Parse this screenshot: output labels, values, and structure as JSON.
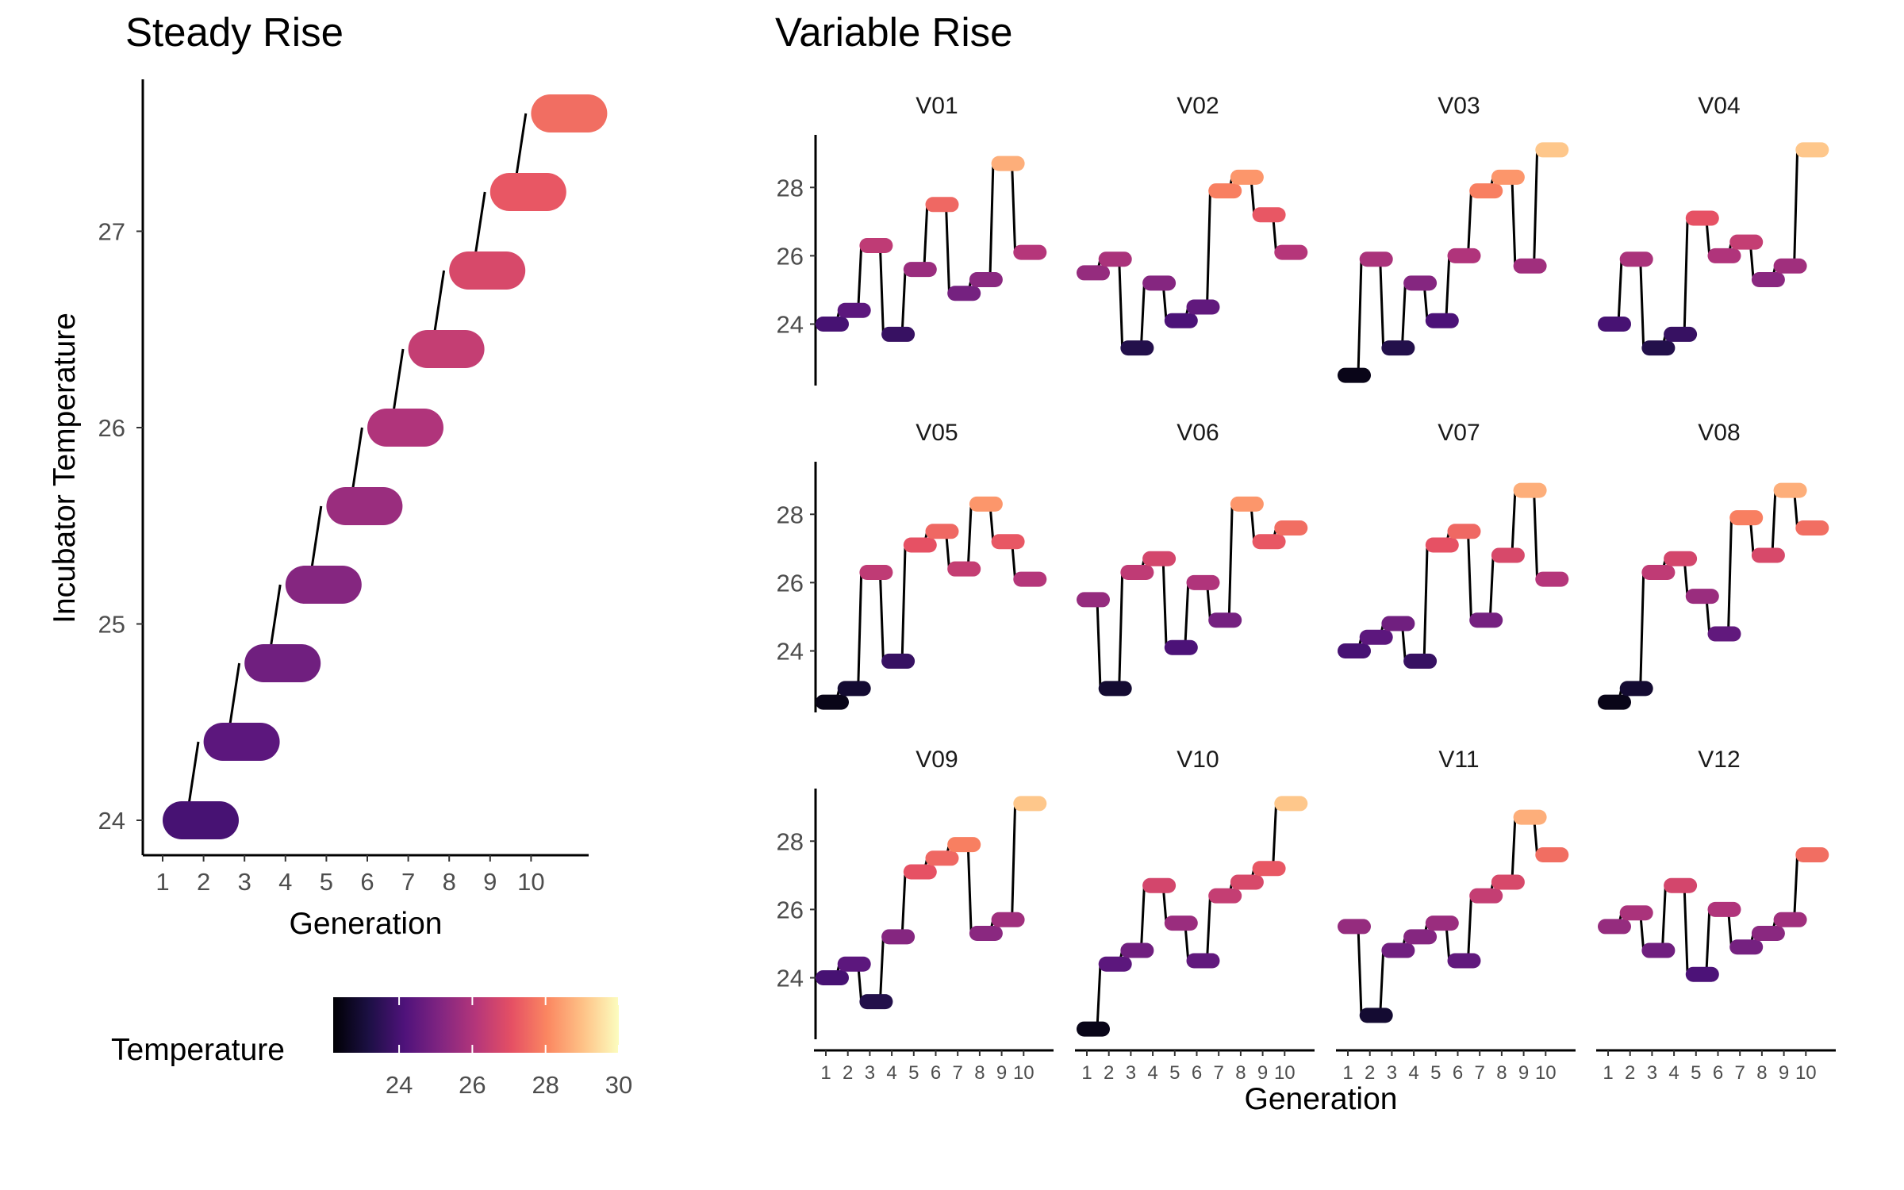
{
  "chart_data": [
    {
      "type": "line",
      "panel": "steady",
      "title": "Steady Rise",
      "xlabel": "Generation",
      "ylabel": "Incubator Temperature",
      "x": [
        1,
        2,
        3,
        4,
        5,
        6,
        7,
        8,
        9,
        10
      ],
      "xticks": [
        "1",
        "2",
        "3",
        "4",
        "5",
        "6",
        "7",
        "8",
        "9",
        "10"
      ],
      "yticks": [
        "24",
        "25",
        "26",
        "27"
      ],
      "ylim": [
        23.8,
        27.9
      ],
      "values": [
        24.0,
        24.4,
        24.8,
        25.2,
        25.6,
        26.0,
        26.4,
        26.8,
        27.2,
        27.6
      ]
    },
    {
      "type": "line",
      "panel": "variable",
      "title": "Variable Rise",
      "xlabel": "Generation",
      "ylabel": "",
      "x": [
        1,
        2,
        3,
        4,
        5,
        6,
        7,
        8,
        9,
        10
      ],
      "xticks": [
        "1",
        "2",
        "3",
        "4",
        "5",
        "6",
        "7",
        "8",
        "9",
        "10"
      ],
      "yticks": [
        "24",
        "26",
        "28"
      ],
      "ylim": [
        22.2,
        29.4
      ],
      "series": [
        {
          "name": "V01",
          "values": [
            24.0,
            24.4,
            26.3,
            23.7,
            25.6,
            27.5,
            24.9,
            25.3,
            28.7,
            26.1
          ]
        },
        {
          "name": "V02",
          "values": [
            25.5,
            25.9,
            23.3,
            25.2,
            24.1,
            24.5,
            27.9,
            28.3,
            27.2,
            26.1
          ]
        },
        {
          "name": "V03",
          "values": [
            22.5,
            25.9,
            23.3,
            25.2,
            24.1,
            26.0,
            27.9,
            28.3,
            25.7,
            29.1
          ]
        },
        {
          "name": "V04",
          "values": [
            24.0,
            25.9,
            23.3,
            23.7,
            27.1,
            26.0,
            26.4,
            25.3,
            25.7,
            29.1
          ]
        },
        {
          "name": "V05",
          "values": [
            22.5,
            22.9,
            26.3,
            23.7,
            27.1,
            27.5,
            26.4,
            28.3,
            27.2,
            26.1
          ]
        },
        {
          "name": "V06",
          "values": [
            25.5,
            22.9,
            26.3,
            26.7,
            24.1,
            26.0,
            24.9,
            28.3,
            27.2,
            27.6
          ]
        },
        {
          "name": "V07",
          "values": [
            24.0,
            24.4,
            24.8,
            23.7,
            27.1,
            27.5,
            24.9,
            26.8,
            28.7,
            26.1
          ]
        },
        {
          "name": "V08",
          "values": [
            22.5,
            22.9,
            26.3,
            26.7,
            25.6,
            24.5,
            27.9,
            26.8,
            28.7,
            27.6
          ]
        },
        {
          "name": "V09",
          "values": [
            24.0,
            24.4,
            23.3,
            25.2,
            27.1,
            27.5,
            27.9,
            25.3,
            25.7,
            29.1
          ]
        },
        {
          "name": "V10",
          "values": [
            22.5,
            24.4,
            24.8,
            26.7,
            25.6,
            24.5,
            26.4,
            26.8,
            27.2,
            29.1
          ]
        },
        {
          "name": "V11",
          "values": [
            25.5,
            22.9,
            24.8,
            25.2,
            25.6,
            24.5,
            26.4,
            26.8,
            28.7,
            27.6
          ]
        },
        {
          "name": "V12",
          "values": [
            25.5,
            25.9,
            24.8,
            26.7,
            24.1,
            26.0,
            24.9,
            25.3,
            25.7,
            27.6
          ]
        }
      ]
    }
  ],
  "legend": {
    "title": "Temperature",
    "ticks": [
      "24",
      "26",
      "28",
      "30"
    ],
    "tick_values": [
      24,
      26,
      28,
      30
    ],
    "range": [
      22.2,
      30.0
    ],
    "palette": "magma",
    "colors": [
      "#000004",
      "#1c1044",
      "#4f127b",
      "#812581",
      "#b5367a",
      "#e55064",
      "#fb8761",
      "#fec287",
      "#fcfdbf"
    ]
  }
}
